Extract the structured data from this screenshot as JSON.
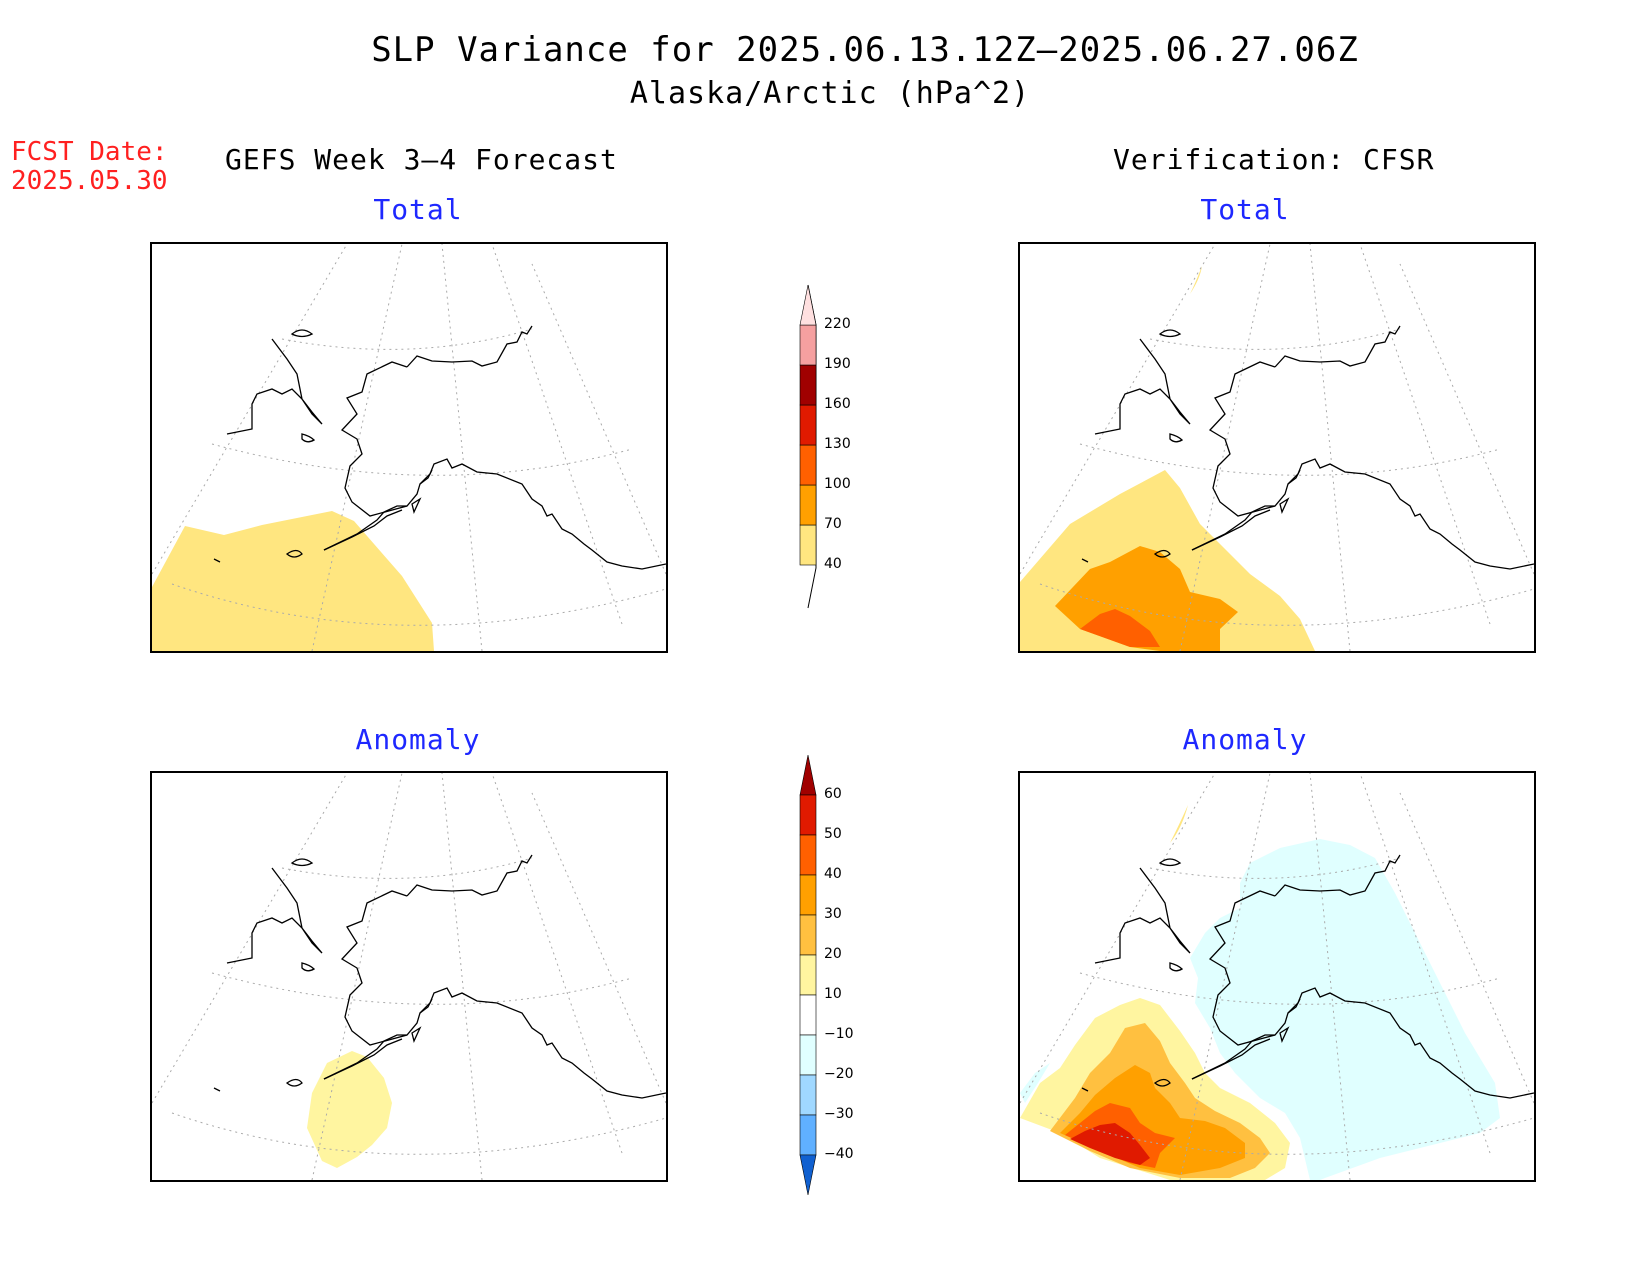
{
  "title": {
    "line1": "SLP Variance for 2025.06.13.12Z–2025.06.27.06Z",
    "line2": "Alaska/Arctic (hPa^2)"
  },
  "fcst_date": {
    "label": "FCST Date:",
    "value": "2025.05.30"
  },
  "columns": {
    "left": "GEFS Week 3–4 Forecast",
    "right": "Verification: CFSR"
  },
  "panels": {
    "top_left": {
      "subtitle": "Total"
    },
    "top_right": {
      "subtitle": "Total"
    },
    "bottom_left": {
      "subtitle": "Anomaly"
    },
    "bottom_right": {
      "subtitle": "Anomaly"
    }
  },
  "colorbar_total": {
    "levels": [
      "40",
      "70",
      "100",
      "130",
      "160",
      "190",
      "220"
    ],
    "colors": [
      "#ffe680",
      "#ffa000",
      "#ff6000",
      "#e01a00",
      "#a00000",
      "#f5a0a0",
      "#ffe0e0"
    ]
  },
  "colorbar_anomaly": {
    "levels": [
      "60",
      "50",
      "40",
      "30",
      "20",
      "10",
      "−10",
      "−20",
      "−30",
      "−40"
    ],
    "colors_top_to_bottom": [
      "#a00000",
      "#e01a00",
      "#ff6000",
      "#ffa000",
      "#ffc040",
      "#fff5a0",
      "#ffffff",
      "#e0ffff",
      "#a0d8ff",
      "#60b0ff",
      "#2878f0",
      "#1060d0"
    ]
  }
}
